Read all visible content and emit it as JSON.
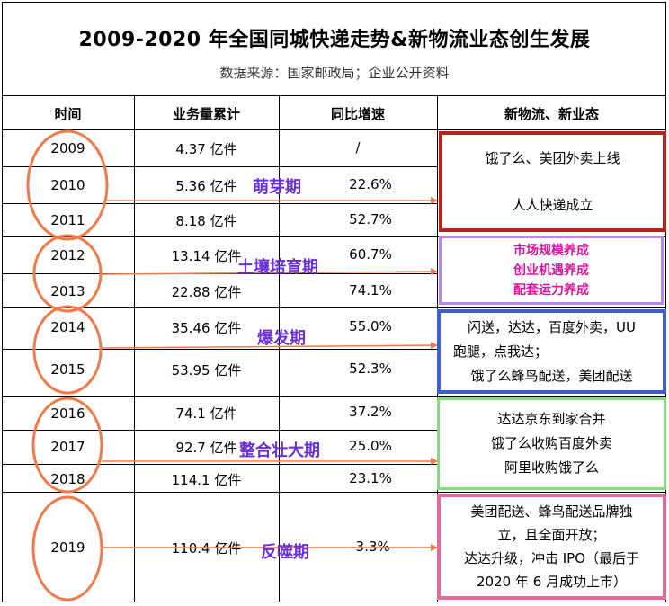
{
  "title": "2009-2020 年全国同城快递走势&新物流业态创生发展",
  "source": "数据来源：国家邮政局；企业公开资料",
  "headers": [
    "时间",
    "业务量累计",
    "同比增速",
    "新物流、新业态"
  ],
  "rows": [
    {
      "year": "2009",
      "volume": "4.37 亿件",
      "growth": "/"
    },
    {
      "year": "2010",
      "volume": "5.36 亿件",
      "growth": "22.6%"
    },
    {
      "year": "2011",
      "volume": "8.18 亿件",
      "growth": "52.7%"
    },
    {
      "year": "2012",
      "volume": "13.14 亿件",
      "growth": "60.7%"
    },
    {
      "year": "2013",
      "volume": "22.88 亿件",
      "growth": "74.1%"
    },
    {
      "year": "2014",
      "volume": "35.46 亿件",
      "growth": "55.0%"
    },
    {
      "year": "2015",
      "volume": "53.95 亿件",
      "growth": "52.3%"
    },
    {
      "year": "2016",
      "volume": "74.1 亿件",
      "growth": "37.2%"
    },
    {
      "year": "2017",
      "volume": "92.7 亿件",
      "growth": "25.0%"
    },
    {
      "year": "2018",
      "volume": "114.1 亿件",
      "growth": "23.1%"
    },
    {
      "year": "2019",
      "volume": "110.4 亿件",
      "growth": "-3.3%"
    }
  ],
  "stages": {
    "sprout": "萌芽期",
    "soil": "土壤培育期",
    "burst": "爆发期",
    "consolidate": "整合壮大期",
    "backlash": "反噬期"
  },
  "events": {
    "g1_line1": "饿了么、美团外卖上线",
    "g1_line2": "人人快递成立",
    "g2_line1": "市场规模养成",
    "g2_line2": "创业机遇养成",
    "g2_line3": "配套运力养成",
    "g3_line1": "闪送，达达，百度外卖，UU",
    "g3_line2": "跑腿，点我达；",
    "g3_line3": "饿了么蜂鸟配送，美团配送",
    "g4_line1": "达达京东到家合并",
    "g4_line2": "饿了么收购百度外卖",
    "g4_line3": "阿里收购饿了么",
    "g5_line1": "美团配送、蜂鸟配送品牌独",
    "g5_line2": "立，且全面开放；",
    "g5_line3": "达达升级，冲击 IPO（最后于",
    "g5_line4": "2020 年 6 月成功上市）"
  },
  "colors": {
    "circle": "#f07a4a",
    "arrow": "#f07a4a",
    "stage_text": "#6b2fd6",
    "box_red": "#b3241f",
    "box_purple": "#b48ce8",
    "box_blue": "#3f5fc8",
    "box_green": "#86dc7a",
    "box_pink": "#e46a9c",
    "growth_text": "#d6179b"
  }
}
